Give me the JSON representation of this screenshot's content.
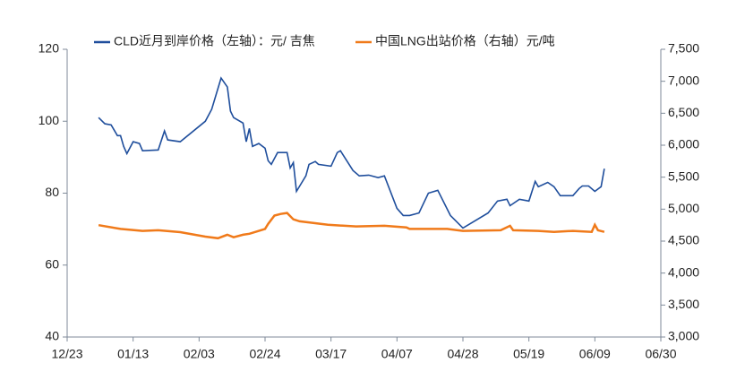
{
  "chart_data": {
    "type": "line",
    "xlim": [
      "12/23",
      "06/30"
    ],
    "xticks": [
      "12/23",
      "01/13",
      "02/03",
      "02/24",
      "03/17",
      "04/07",
      "04/28",
      "05/19",
      "06/09",
      "06/30"
    ],
    "ylim": [
      40,
      120
    ],
    "yticks": [
      40,
      60,
      80,
      100,
      120
    ],
    "y2lim": [
      3000,
      7500
    ],
    "y2ticks": [
      {
        "value": 3000,
        "label": "3,000"
      },
      {
        "value": 3500,
        "label": "3,500"
      },
      {
        "value": 4000,
        "label": "4,000"
      },
      {
        "value": 4500,
        "label": "4,500"
      },
      {
        "value": 5000,
        "label": "5,000"
      },
      {
        "value": 5500,
        "label": "5,500"
      },
      {
        "value": 6000,
        "label": "6,000"
      },
      {
        "value": 6500,
        "label": "6,500"
      },
      {
        "value": 7000,
        "label": "7,000"
      },
      {
        "value": 7500,
        "label": "7,500"
      }
    ],
    "legend": "top",
    "series": [
      {
        "name": "CLD近月到岸价格（左轴）：元/ 吉焦",
        "color": "#1f4e9c",
        "axis": "y",
        "x": [
          "01/02",
          "01/04",
          "01/06",
          "01/08",
          "01/09",
          "01/10",
          "01/11",
          "01/13",
          "01/15",
          "01/16",
          "01/21",
          "01/23",
          "01/24",
          "01/28",
          "02/05",
          "02/07",
          "02/10",
          "02/12",
          "02/13",
          "02/14",
          "02/17",
          "02/18",
          "02/19",
          "02/20",
          "02/22",
          "02/24",
          "02/25",
          "02/26",
          "02/28",
          "03/03",
          "03/04",
          "03/05",
          "03/06",
          "03/09",
          "03/10",
          "03/12",
          "03/13",
          "03/17",
          "03/19",
          "03/20",
          "03/24",
          "03/26",
          "03/29",
          "04/01",
          "04/03",
          "04/07",
          "04/09",
          "04/11",
          "04/14",
          "04/17",
          "04/20",
          "04/24",
          "04/28",
          "05/06",
          "05/09",
          "05/12",
          "05/13",
          "05/16",
          "05/19",
          "05/21",
          "05/22",
          "05/25",
          "05/27",
          "05/29",
          "06/02",
          "06/04",
          "06/05",
          "06/07",
          "06/09",
          "06/11",
          "06/12"
        ],
        "values": [
          101,
          99.3,
          99,
          96,
          96,
          93,
          91,
          94.3,
          93.8,
          91.8,
          92,
          97.3,
          94.8,
          94.3,
          100,
          103.3,
          112,
          109.5,
          102.8,
          101,
          99.5,
          94.3,
          98,
          93,
          93.8,
          92.5,
          89,
          88,
          91.3,
          91.3,
          87,
          88.5,
          80.5,
          84.8,
          88,
          88.8,
          88,
          87.5,
          91.3,
          91.8,
          86.3,
          84.8,
          85,
          84.3,
          84.8,
          75.8,
          73.8,
          73.8,
          74.5,
          80,
          80.8,
          73.8,
          70.3,
          74.5,
          77.8,
          78.3,
          76.5,
          78.3,
          77.8,
          83.3,
          81.8,
          83,
          81.8,
          79.3,
          79.3,
          81.3,
          82,
          82,
          80.5,
          81.8,
          86.8
        ]
      },
      {
        "name": "中国LNG出站价格（右轴）元/吨",
        "color": "#f07a1a",
        "axis": "y2",
        "x": [
          "01/02",
          "01/09",
          "01/16",
          "01/21",
          "01/28",
          "02/05",
          "02/09",
          "02/12",
          "02/14",
          "02/17",
          "02/19",
          "02/24",
          "02/25",
          "02/27",
          "03/01",
          "03/03",
          "03/05",
          "03/07",
          "03/16",
          "03/25",
          "04/03",
          "04/10",
          "04/11",
          "04/23",
          "04/28",
          "05/10",
          "05/13",
          "05/14",
          "05/22",
          "05/27",
          "06/02",
          "06/08",
          "06/09",
          "06/10",
          "06/12"
        ],
        "values": [
          4750,
          4690,
          4660,
          4670,
          4640,
          4570,
          4545,
          4600,
          4560,
          4600,
          4615,
          4690,
          4770,
          4900,
          4925,
          4940,
          4840,
          4810,
          4755,
          4730,
          4740,
          4715,
          4690,
          4690,
          4660,
          4670,
          4740,
          4670,
          4660,
          4645,
          4660,
          4645,
          4755,
          4670,
          4645
        ]
      }
    ]
  }
}
